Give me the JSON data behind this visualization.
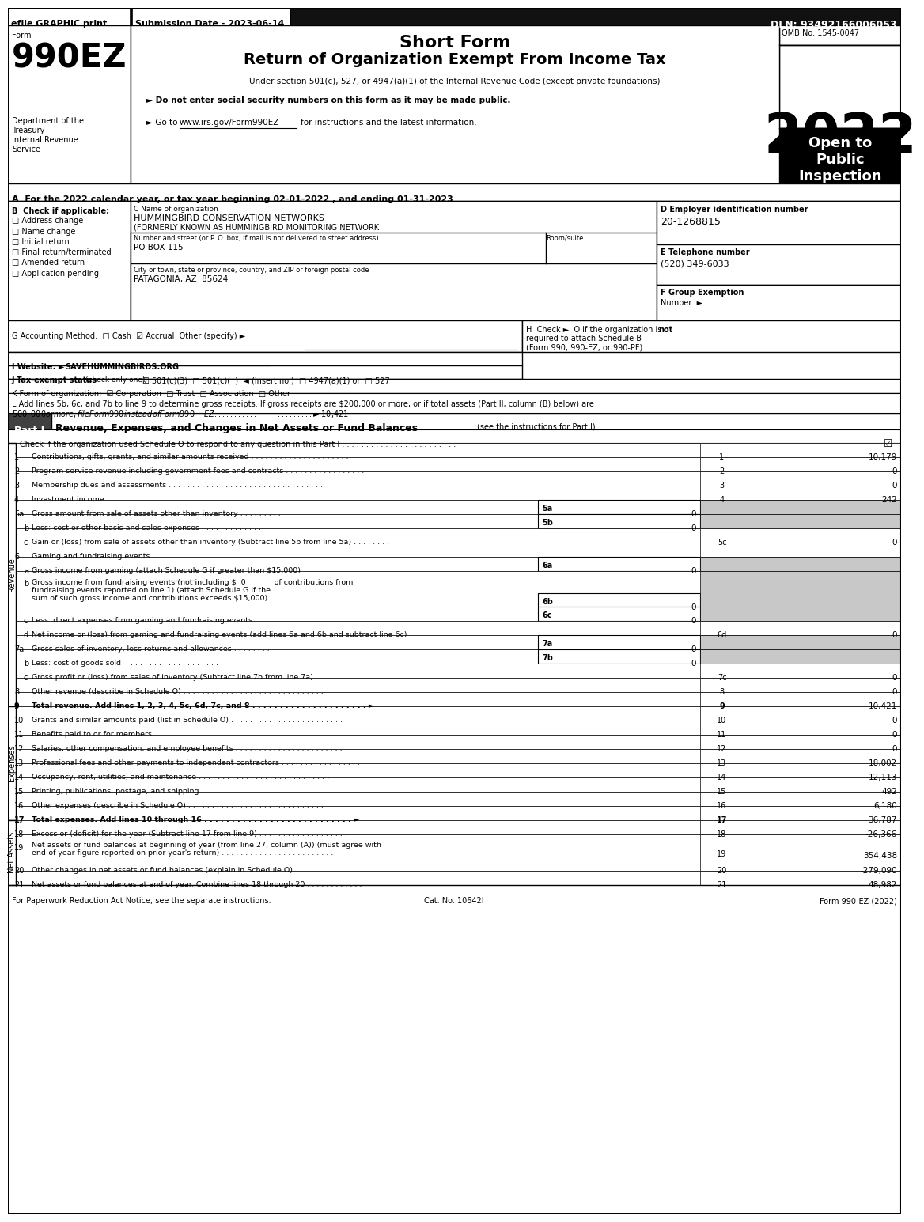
{
  "header_bar": {
    "efile_text": "efile GRAPHIC print",
    "submission_text": "Submission Date - 2023-06-14",
    "dln_text": "DLN: 93492166006053"
  },
  "form_title": {
    "short_form": "Short Form",
    "main_title": "Return of Organization Exempt From Income Tax",
    "subtitle": "Under section 501(c), 527, or 4947(a)(1) of the Internal Revenue Code (except private foundations)",
    "bullet1": "► Do not enter social security numbers on this form as it may be made public.",
    "bullet2": "► Go to",
    "bullet2b": "www.irs.gov/Form990EZ",
    "bullet2c": "for instructions and the latest information.",
    "form_num": "Form",
    "form_code": "990EZ",
    "year": "2022",
    "omb": "OMB No. 1545-0047",
    "open_to": "Open to\nPublic\nInspection",
    "dept1": "Department of the",
    "dept2": "Treasury",
    "dept3": "Internal Revenue",
    "dept4": "Service"
  },
  "section_a": {
    "text": "A  For the 2022 calendar year, or tax year beginning 02-01-2022 , and ending 01-31-2023"
  },
  "section_b": {
    "label": "B  Check if applicable:",
    "items": [
      "□ Address change",
      "□ Name change",
      "□ Initial return",
      "□ Final return/terminated",
      "□ Amended return",
      "□ Application pending"
    ]
  },
  "section_c": {
    "label": "C Name of organization",
    "org_name": "HUMMINGBIRD CONSERVATION NETWORKS",
    "org_aka": "(FORMERLY KNOWN AS HUMMINGBIRD MONITORING NETWORK",
    "addr_label": "Number and street (or P. O. box, if mail is not delivered to street address)",
    "room_label": "Room/suite",
    "addr": "PO BOX 115",
    "city_label": "City or town, state or province, country, and ZIP or foreign postal code",
    "city": "PATAGONIA, AZ  85624"
  },
  "section_d": {
    "label": "D Employer identification number",
    "ein": "20-1268815"
  },
  "section_e": {
    "label": "E Telephone number",
    "phone": "(520) 349-6033"
  },
  "section_f": {
    "label": "F Group Exemption",
    "label2": "Number  ►"
  },
  "section_g": {
    "text": "G Accounting Method:  □ Cash  ☑ Accrual  Other (specify) ►"
  },
  "section_h_line1": "H  Check ►  O if the organization is",
  "section_h_not": "not",
  "section_h_line2": "required to attach Schedule B",
  "section_h_line3": "(Form 990, 990-EZ, or 990-PF).",
  "section_i": "I Website: ►",
  "section_i_url": "SAVEHUMMINGBIRDS.ORG",
  "section_j": "J Tax-exempt status",
  "section_j2": "(check only one) -",
  "section_j3": "☑ 501(c)(3)  □ 501(c)(  )  ◄ (insert no.)  □ 4947(a)(1) or  □ 527",
  "section_k": "K Form of organization:  ☑ Corporation  □ Trust  □ Association  □ Other",
  "section_l1": "L Add lines 5b, 6c, and 7b to line 9 to determine gross receipts. If gross receipts are $200,000 or more, or if total assets (Part II, column (B) below) are",
  "section_l2": "$500,000 or more, file Form 990 instead of Form 990-EZ . . . . . . . . . . . . . . . . . . . . . . . . . ► $ 10,421",
  "part1_title": "Revenue, Expenses, and Changes in Net Assets or Fund Balances",
  "part1_title2": "(see the instructions for Part I)",
  "part1_check": "Check if the organization used Schedule O to respond to any question in this Part I . . . . . . . . . . . . . . . . . . . . . . . .",
  "footer_left": "For Paperwork Reduction Act Notice, see the separate instructions.",
  "footer_center": "Cat. No. 10642I",
  "footer_right": "Form 990-EZ (2022)"
}
